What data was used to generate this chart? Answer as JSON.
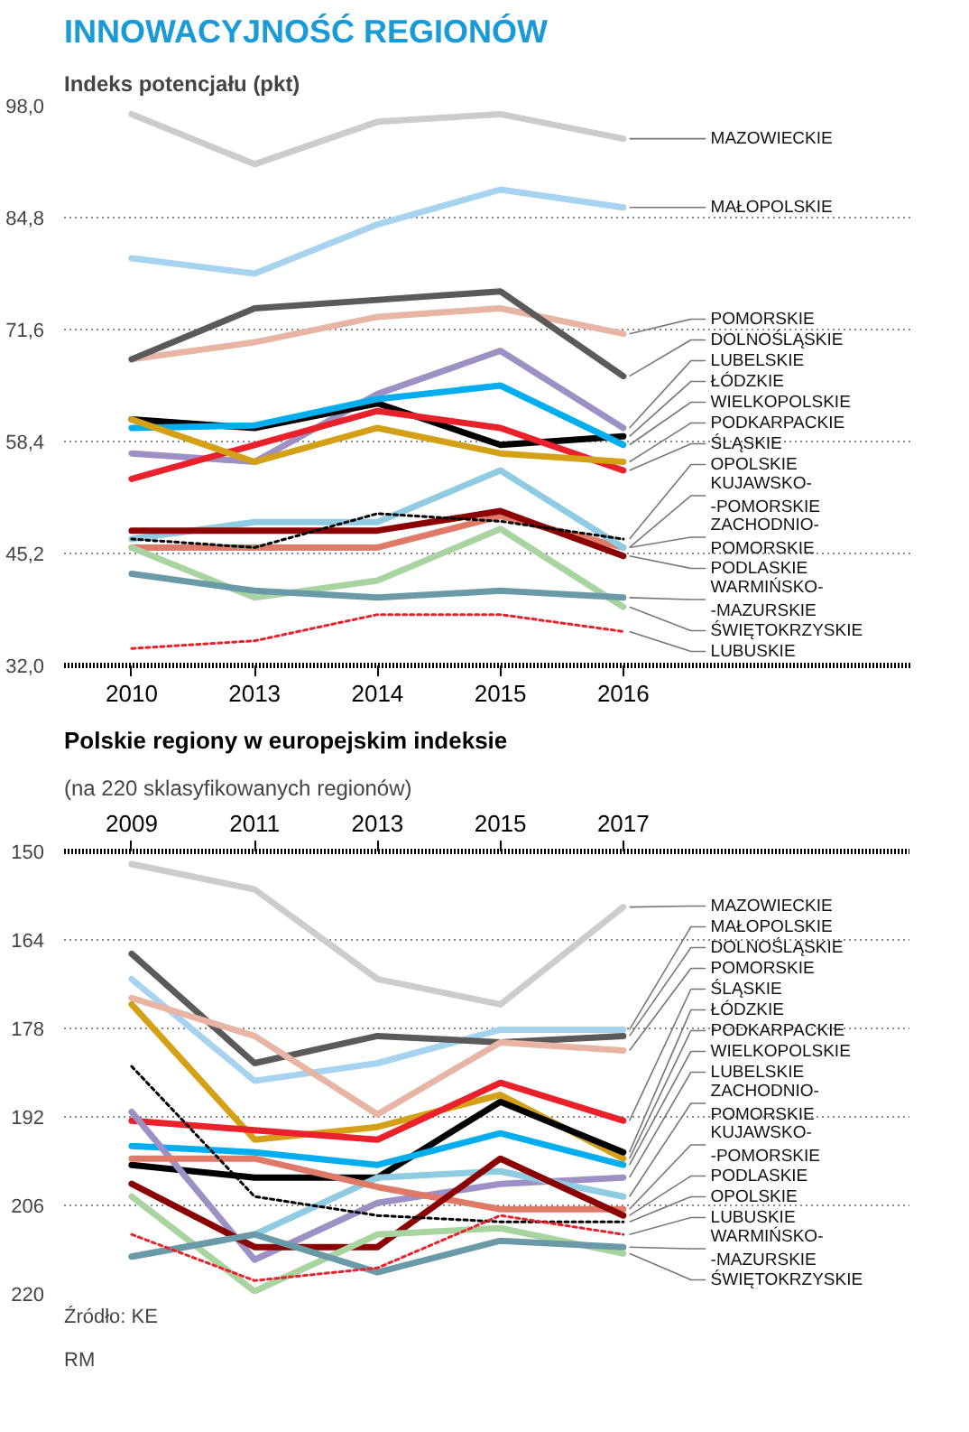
{
  "chart_data": [
    {
      "type": "line",
      "title": "INNOWACYJNOŚĆ REGIONÓW",
      "subtitle": "Indeks potencjału (pkt)",
      "categories": [
        "2010",
        "2013",
        "2014",
        "2015",
        "2016"
      ],
      "ylim": [
        32,
        98
      ],
      "yticks": [
        {
          "value": 32,
          "label": "32,0"
        },
        {
          "value": 45.2,
          "label": "45,2"
        },
        {
          "value": 58.4,
          "label": "58,4"
        },
        {
          "value": 71.6,
          "label": "71,6"
        },
        {
          "value": 84.8,
          "label": "84,8"
        },
        {
          "value": 98,
          "label": "98,0"
        }
      ],
      "grid": "y",
      "series": [
        {
          "name": "MAZOWIECKIE",
          "color": "#cccccc",
          "values": [
            97.0,
            91.1,
            96.1,
            97.0,
            94.1
          ]
        },
        {
          "name": "MAŁOPOLSKIE",
          "color": "#a6d3ef",
          "values": [
            80.0,
            78.2,
            84.0,
            88.1,
            86.0
          ]
        },
        {
          "name": "POMORSKIE",
          "color": "#e8b4a4",
          "values": [
            68.1,
            70.1,
            73.1,
            74.1,
            71.1
          ]
        },
        {
          "name": "DOLNOŚLĄSKIE",
          "color": "#5a5a5a",
          "values": [
            68.1,
            74.1,
            75.1,
            76.1,
            66.1
          ]
        },
        {
          "name": "LUBELSKIE",
          "color": "#9c90c4",
          "values": [
            57.0,
            56.0,
            64.0,
            69.1,
            60.0
          ]
        },
        {
          "name": "ŁÓDZKIE",
          "color": "#000000",
          "values": [
            61.0,
            60.0,
            62.9,
            58.0,
            59.0
          ]
        },
        {
          "name": "WIELKOPOLSKIE",
          "color": "#00aeef",
          "values": [
            60.0,
            60.3,
            63.4,
            65.0,
            58.0
          ]
        },
        {
          "name": "ŚLĄSKIE",
          "color": "#e8212a",
          "values": [
            54.0,
            58.0,
            62.0,
            60.0,
            55.0
          ]
        },
        {
          "name": "PODKARPACKIE",
          "color": "#d4a017",
          "values": [
            61.0,
            56.0,
            60.0,
            57.0,
            56.0
          ]
        },
        {
          "name": "OPOLSKIE",
          "color": "#000000",
          "line_style": "dotted",
          "values": [
            46.9,
            45.9,
            49.9,
            49.0,
            46.9
          ]
        },
        {
          "name": "KUJAWSKO-\n-POMORSKIE",
          "color": "#e07a68",
          "values": [
            45.9,
            45.9,
            45.9,
            49.6,
            45.9
          ]
        },
        {
          "name": "ZACHODNIO-\nPOMORSKIE",
          "color": "#8fcbe3",
          "values": [
            46.9,
            48.9,
            48.9,
            55.0,
            45.9
          ]
        },
        {
          "name": "PODLASKIE",
          "color": "#8b0000",
          "values": [
            47.9,
            47.9,
            47.9,
            50.2,
            44.9
          ]
        },
        {
          "name": "ŚWIĘTOKRZYSKIE",
          "color": "#a8d4a0",
          "values": [
            45.9,
            40.0,
            42.0,
            48.1,
            38.9
          ]
        },
        {
          "name": "WARMIŃSKO-\n-MAZURSKIE",
          "color": "#6a9aa8",
          "values": [
            42.8,
            40.8,
            40.0,
            40.8,
            40.0
          ]
        },
        {
          "name": "LUBUSKIE",
          "color": "#e8212a",
          "line_style": "dotted",
          "values": [
            34.0,
            34.9,
            38.0,
            38.0,
            36.0
          ]
        }
      ]
    },
    {
      "type": "line",
      "title": "Polskie regiony w europejskim indeksie",
      "subtitle": "(na 220 sklasyfikowanych regionów)",
      "annotations": [
        "Źródło: KE",
        "RM"
      ],
      "categories": [
        "2009",
        "2011",
        "2013",
        "2015",
        "2017"
      ],
      "ylim": [
        220,
        150
      ],
      "yticks": [
        150,
        164,
        178,
        192,
        206,
        220
      ],
      "grid": "y",
      "series": [
        {
          "name": "MAZOWIECKIE",
          "color": "#cccccc",
          "values": [
            152.0,
            156.0,
            170.2,
            174.2,
            158.8
          ]
        },
        {
          "name": "MAŁOPOLSKIE",
          "color": "#a6d3ef",
          "values": [
            170.2,
            186.3,
            183.5,
            178.2,
            178.2
          ]
        },
        {
          "name": "DOLNOŚLĄSKIE",
          "color": "#5a5a5a",
          "values": [
            166.2,
            183.5,
            179.2,
            180.2,
            179.2
          ]
        },
        {
          "name": "POMORSKIE",
          "color": "#e8b4a4",
          "values": [
            173.2,
            179.2,
            191.6,
            180.2,
            181.5
          ]
        },
        {
          "name": "PODKARPACKIE",
          "color": "#d4a017",
          "values": [
            174.2,
            195.6,
            193.6,
            188.5,
            198.6
          ]
        },
        {
          "name": "ŁÓDZKIE",
          "color": "#000000",
          "values": [
            199.6,
            201.6,
            201.6,
            189.6,
            197.6
          ]
        },
        {
          "name": "ŚLĄSKIE",
          "color": "#e8212a",
          "values": [
            192.6,
            194.1,
            195.6,
            186.6,
            192.6
          ]
        },
        {
          "name": "WIELKOPOLSKIE",
          "color": "#00aeef",
          "values": [
            196.6,
            197.6,
            199.6,
            194.6,
            199.6
          ]
        },
        {
          "name": "LUBELSKIE",
          "color": "#9c90c4",
          "values": [
            191.2,
            214.6,
            205.6,
            202.6,
            201.6
          ]
        },
        {
          "name": "ZACHODNIO-\nPOMORSKIE",
          "color": "#8fcbe3",
          "values": [
            214.1,
            210.6,
            201.6,
            200.6,
            204.6
          ]
        },
        {
          "name": "KUJAWSKO-\n-POMORSKIE",
          "color": "#e07a68",
          "values": [
            198.6,
            198.6,
            203.1,
            206.6,
            206.6
          ]
        },
        {
          "name": "OPOLSKIE",
          "color": "#000000",
          "line_style": "dotted",
          "values": [
            184.0,
            204.6,
            207.6,
            208.6,
            208.6
          ]
        },
        {
          "name": "PODLASKIE",
          "color": "#8b0000",
          "values": [
            202.6,
            212.6,
            212.6,
            198.6,
            207.6
          ]
        },
        {
          "name": "ŚWIĘTOKRZYSKIE",
          "color": "#a8d4a0",
          "values": [
            204.6,
            219.6,
            210.6,
            209.6,
            213.6
          ]
        },
        {
          "name": "WARMIŃSKO-\n-MAZURSKIE",
          "color": "#6a9aa8",
          "values": [
            214.1,
            210.6,
            216.6,
            211.6,
            212.6
          ]
        },
        {
          "name": "LUBUSKIE",
          "color": "#e8212a",
          "line_style": "dotted",
          "values": [
            210.6,
            217.9,
            215.9,
            207.6,
            210.6
          ]
        }
      ]
    }
  ]
}
